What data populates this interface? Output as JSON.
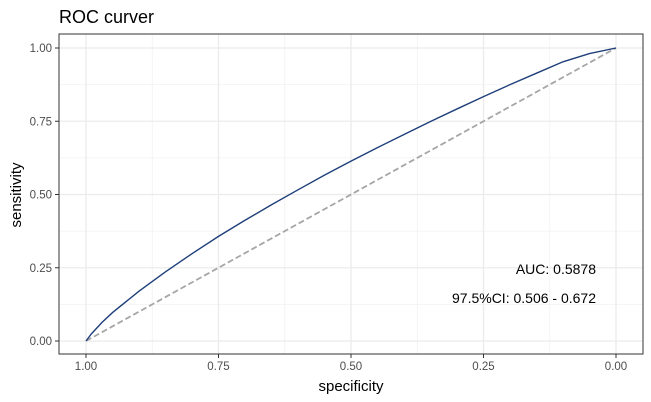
{
  "chart_data": {
    "type": "line",
    "title": "ROC curver",
    "xlabel": "specificity",
    "ylabel": "sensitivity",
    "x_reversed": true,
    "xlim": [
      1.0,
      0.0
    ],
    "ylim": [
      0.0,
      1.0
    ],
    "x_ticks": [
      "1.00",
      "0.75",
      "0.50",
      "0.25",
      "0.00"
    ],
    "y_ticks": [
      "0.00",
      "0.25",
      "0.50",
      "0.75",
      "1.00"
    ],
    "grid": true,
    "series": [
      {
        "style": "solid",
        "color": "#1f3f7a",
        "specificity": [
          1.0,
          0.99,
          0.97,
          0.95,
          0.9,
          0.85,
          0.8,
          0.75,
          0.7,
          0.65,
          0.6,
          0.55,
          0.5,
          0.45,
          0.4,
          0.35,
          0.3,
          0.25,
          0.2,
          0.15,
          0.1,
          0.05,
          0.0
        ],
        "sensitivity": [
          0.0,
          0.024,
          0.063,
          0.097,
          0.17,
          0.236,
          0.298,
          0.357,
          0.412,
          0.465,
          0.516,
          0.566,
          0.614,
          0.66,
          0.705,
          0.749,
          0.792,
          0.834,
          0.875,
          0.914,
          0.953,
          0.981,
          1.0
        ]
      },
      {
        "style": "dashed",
        "color": "#a6a6a6",
        "specificity": [
          1.0,
          0.0
        ],
        "sensitivity": [
          0.0,
          1.0
        ]
      }
    ],
    "annotations": [
      "AUC: 0.5878",
      "97.5%CI: 0.506 - 0.672"
    ]
  }
}
